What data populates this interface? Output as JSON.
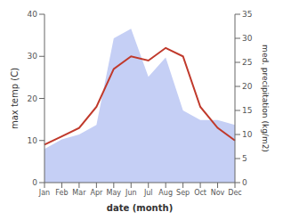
{
  "chart_data": {
    "type": "line",
    "categories": [
      "Jan",
      "Feb",
      "Mar",
      "Apr",
      "May",
      "Jun",
      "Jul",
      "Aug",
      "Sep",
      "Oct",
      "Nov",
      "Dec"
    ],
    "series": [
      {
        "type": "area",
        "axis": "y2",
        "color": "#c5cff5",
        "values": [
          7,
          9,
          10,
          12,
          30,
          32,
          22,
          26,
          15,
          13,
          13,
          12
        ]
      },
      {
        "type": "line",
        "axis": "y",
        "color": "#c0392b",
        "values": [
          9,
          11,
          13,
          18,
          27,
          30,
          29,
          32,
          30,
          18,
          13,
          10
        ]
      }
    ],
    "xlabel": "date (month)",
    "ylabel": "max temp (C)",
    "y2label": "med. precipitation (kg/m2)",
    "ylim": [
      0,
      40
    ],
    "yticks": [
      0,
      10,
      20,
      30,
      40
    ],
    "y2lim": [
      0,
      35
    ],
    "y2ticks": [
      0,
      5,
      10,
      15,
      20,
      25,
      30,
      35
    ],
    "grid": false
  }
}
